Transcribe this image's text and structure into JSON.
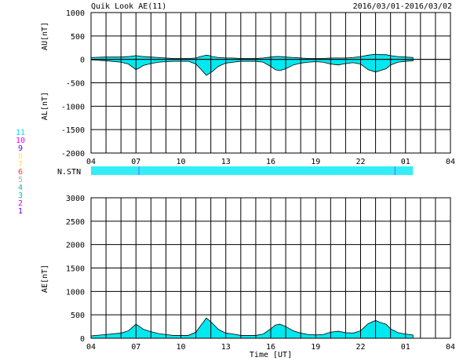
{
  "header": {
    "title": "Quik Look AE(11)",
    "date_range": "2016/03/01-2016/03/02"
  },
  "colors": {
    "fill": "#00e8f0",
    "station_bar": "#33eef5",
    "marker": "#7070ff",
    "grid": "#000000",
    "stations": [
      "#6a00ff",
      "#ff00c8",
      "#17b8a6",
      "#999999",
      "#ff3333",
      "#ffd84a",
      "#ffcc66",
      "#8800ff",
      "#d400d4",
      "#00ccff"
    ]
  },
  "station_legend": {
    "label": "N.STN",
    "numbers": [
      "11",
      "10",
      "9",
      "8",
      "7",
      "6",
      "5",
      "4",
      "3",
      "2",
      "1"
    ]
  },
  "chart_data": [
    {
      "type": "area",
      "name": "AU/AL panel",
      "ylabel_top": "AU[nT]",
      "ylabel_bottom": "AL[nT]",
      "ylim": [
        -2000,
        1000
      ],
      "yticks": [
        "1000",
        "500",
        "0",
        "-500",
        "-1000",
        "-1500",
        "-2000"
      ],
      "xlim": [
        4,
        28
      ],
      "xticks": [
        "04",
        "07",
        "10",
        "13",
        "16",
        "19",
        "22",
        "01",
        "04"
      ],
      "x_hours": [
        4.0,
        5.0,
        6.0,
        6.5,
        7.0,
        7.25,
        7.5,
        8.0,
        8.5,
        9.0,
        9.5,
        10.0,
        10.5,
        11.0,
        11.3,
        11.7,
        11.9,
        12.1,
        12.5,
        13.0,
        13.5,
        14.0,
        14.5,
        15.0,
        15.5,
        16.0,
        16.3,
        16.6,
        17.0,
        17.5,
        18.0,
        18.5,
        19.0,
        19.5,
        20.0,
        20.5,
        21.0,
        21.5,
        22.0,
        22.5,
        23.0,
        23.3,
        23.7,
        24.0,
        24.5,
        25.0,
        25.5
      ],
      "au": [
        40,
        50,
        50,
        60,
        80,
        70,
        60,
        50,
        40,
        30,
        20,
        20,
        20,
        30,
        60,
        90,
        80,
        60,
        40,
        30,
        30,
        20,
        20,
        20,
        30,
        50,
        60,
        60,
        50,
        40,
        30,
        20,
        20,
        20,
        30,
        30,
        30,
        40,
        60,
        90,
        110,
        100,
        100,
        80,
        60,
        50,
        40
      ],
      "al": [
        -10,
        -30,
        -60,
        -100,
        -220,
        -180,
        -130,
        -90,
        -60,
        -50,
        -40,
        -40,
        -40,
        -100,
        -200,
        -340,
        -300,
        -260,
        -150,
        -80,
        -60,
        -40,
        -40,
        -40,
        -60,
        -150,
        -220,
        -240,
        -200,
        -120,
        -80,
        -60,
        -50,
        -60,
        -100,
        -120,
        -90,
        -70,
        -100,
        -220,
        -270,
        -240,
        -200,
        -120,
        -60,
        -40,
        -30
      ]
    },
    {
      "type": "bar",
      "name": "N.STN",
      "xlim": [
        4,
        28
      ],
      "x_start": 4.0,
      "x_end": 25.5,
      "markers_at": [
        7.2,
        24.3
      ]
    },
    {
      "type": "area",
      "name": "AE panel",
      "ylabel": "AE[nT]",
      "xlabel": "Time [UT]",
      "ylim": [
        0,
        3000
      ],
      "yticks": [
        "3000",
        "2500",
        "2000",
        "1500",
        "1000",
        "500",
        "0"
      ],
      "xlim": [
        4,
        28
      ],
      "xticks": [
        "04",
        "07",
        "10",
        "13",
        "16",
        "19",
        "22",
        "01",
        "04"
      ],
      "x_hours": [
        4.0,
        5.0,
        6.0,
        6.5,
        7.0,
        7.25,
        7.5,
        8.0,
        8.5,
        9.0,
        9.5,
        10.0,
        10.5,
        11.0,
        11.3,
        11.7,
        11.9,
        12.1,
        12.5,
        13.0,
        13.5,
        14.0,
        14.5,
        15.0,
        15.5,
        16.0,
        16.3,
        16.6,
        17.0,
        17.5,
        18.0,
        18.5,
        19.0,
        19.5,
        20.0,
        20.5,
        21.0,
        21.5,
        22.0,
        22.5,
        23.0,
        23.3,
        23.7,
        24.0,
        24.5,
        25.0,
        25.5
      ],
      "ae": [
        50,
        80,
        110,
        160,
        300,
        250,
        190,
        140,
        100,
        80,
        60,
        60,
        60,
        130,
        260,
        430,
        380,
        320,
        190,
        110,
        90,
        60,
        60,
        60,
        90,
        200,
        280,
        300,
        250,
        160,
        110,
        80,
        70,
        80,
        130,
        150,
        120,
        110,
        160,
        310,
        380,
        340,
        300,
        200,
        120,
        90,
        70
      ]
    }
  ]
}
